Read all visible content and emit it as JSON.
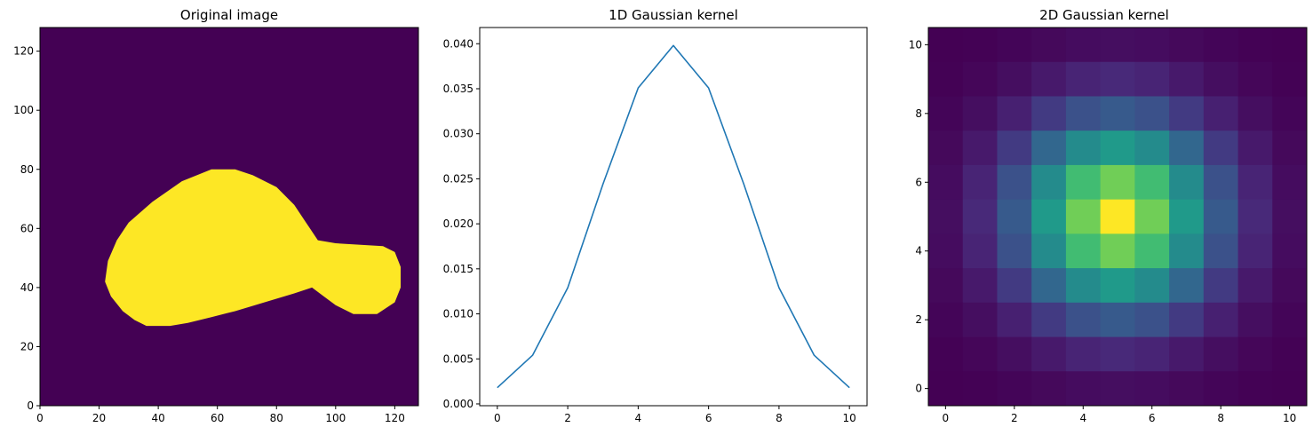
{
  "chart_data": [
    {
      "type": "image",
      "title": "Original image",
      "xlim": [
        0,
        128
      ],
      "ylim": [
        128,
        0
      ],
      "xticks": [
        0,
        20,
        40,
        60,
        80,
        100,
        120
      ],
      "yticks": [
        0,
        20,
        40,
        60,
        80,
        100,
        120
      ],
      "colormap": "viridis",
      "background_color": "#440154",
      "foreground_color": "#fde725",
      "shape_outline": [
        [
          22,
          42
        ],
        [
          24,
          37
        ],
        [
          28,
          32
        ],
        [
          32,
          29
        ],
        [
          36,
          27
        ],
        [
          44,
          27
        ],
        [
          50,
          28
        ],
        [
          58,
          30
        ],
        [
          66,
          32
        ],
        [
          76,
          35
        ],
        [
          86,
          38
        ],
        [
          92,
          40
        ],
        [
          96,
          37
        ],
        [
          100,
          34
        ],
        [
          106,
          31
        ],
        [
          114,
          31
        ],
        [
          120,
          35
        ],
        [
          122,
          40
        ],
        [
          122,
          47
        ],
        [
          120,
          52
        ],
        [
          116,
          54
        ],
        [
          100,
          55
        ],
        [
          94,
          56
        ],
        [
          90,
          62
        ],
        [
          86,
          68
        ],
        [
          80,
          74
        ],
        [
          72,
          78
        ],
        [
          66,
          80
        ],
        [
          58,
          80
        ],
        [
          48,
          76
        ],
        [
          38,
          69
        ],
        [
          30,
          62
        ],
        [
          26,
          56
        ],
        [
          23,
          49
        ]
      ]
    },
    {
      "type": "line",
      "title": "1D Gaussian kernel",
      "x": [
        0,
        1,
        2,
        3,
        4,
        5,
        6,
        7,
        8,
        9,
        10
      ],
      "y": [
        0.0018,
        0.0054,
        0.0129,
        0.0244,
        0.0351,
        0.0398,
        0.0351,
        0.0244,
        0.0129,
        0.0054,
        0.0018
      ],
      "xlim": [
        -0.5,
        10.5
      ],
      "ylim": [
        -0.0002,
        0.0418
      ],
      "xticks": [
        0,
        2,
        4,
        6,
        8,
        10
      ],
      "yticks": [
        0.0,
        0.005,
        0.01,
        0.015,
        0.02,
        0.025,
        0.03,
        0.035,
        0.04
      ],
      "ytick_labels": [
        "0.000",
        "0.005",
        "0.010",
        "0.015",
        "0.020",
        "0.025",
        "0.030",
        "0.035",
        "0.040"
      ],
      "color": "#1f77b4"
    },
    {
      "type": "heatmap",
      "title": "2D Gaussian kernel",
      "size": 11,
      "xlim": [
        -0.5,
        10.5
      ],
      "ylim": [
        10.5,
        -0.5
      ],
      "xticks": [
        0,
        2,
        4,
        6,
        8,
        10
      ],
      "yticks": [
        0,
        2,
        4,
        6,
        8,
        10
      ],
      "colormap": "viridis",
      "kernel_1d": [
        0.0018,
        0.0054,
        0.0129,
        0.0244,
        0.0351,
        0.0398,
        0.0351,
        0.0244,
        0.0129,
        0.0054,
        0.0018
      ]
    }
  ]
}
